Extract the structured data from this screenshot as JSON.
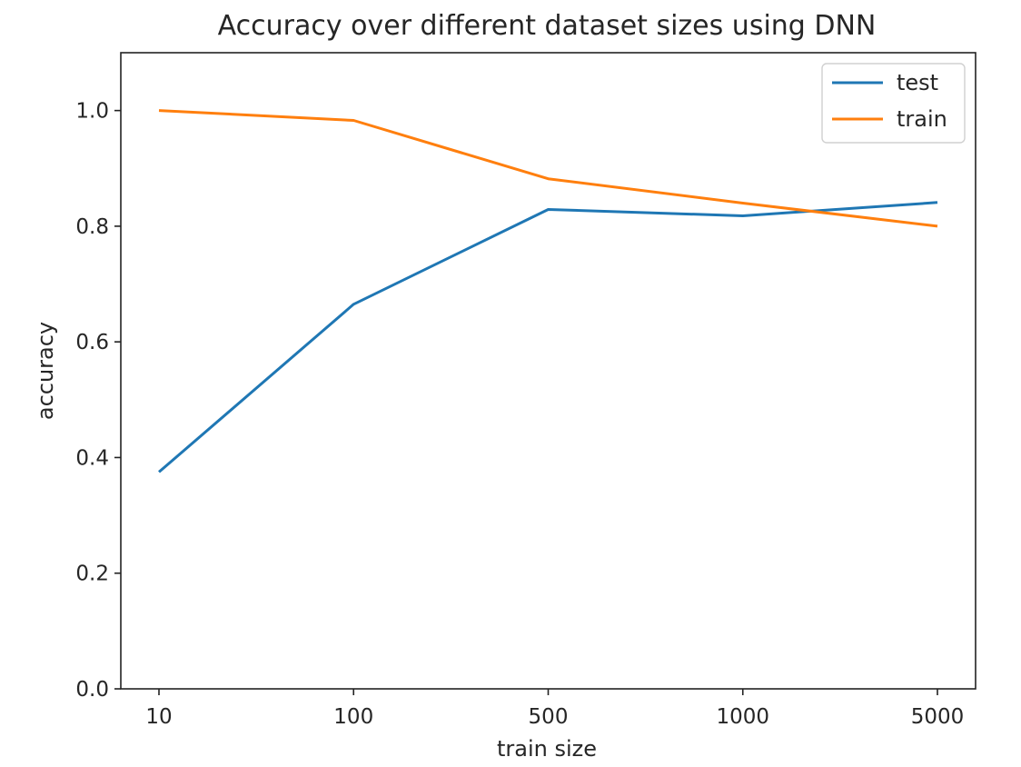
{
  "chart_data": {
    "type": "line",
    "title": "Accuracy over different dataset sizes using DNN",
    "xlabel": "train size",
    "ylabel": "accuracy",
    "categories": [
      "10",
      "100",
      "500",
      "1000",
      "5000"
    ],
    "ylim": [
      0.0,
      1.1
    ],
    "yticks": [
      0.0,
      0.2,
      0.4,
      0.6,
      0.8,
      1.0
    ],
    "ytick_labels": [
      "0.0",
      "0.2",
      "0.4",
      "0.6",
      "0.8",
      "1.0"
    ],
    "grid": false,
    "legend_position": "top-right",
    "series": [
      {
        "name": "test",
        "color": "#1f77b4",
        "values": [
          0.375,
          0.665,
          0.829,
          0.818,
          0.841
        ]
      },
      {
        "name": "train",
        "color": "#ff7f0e",
        "values": [
          1.0,
          0.983,
          0.882,
          0.84,
          0.8
        ]
      }
    ]
  }
}
